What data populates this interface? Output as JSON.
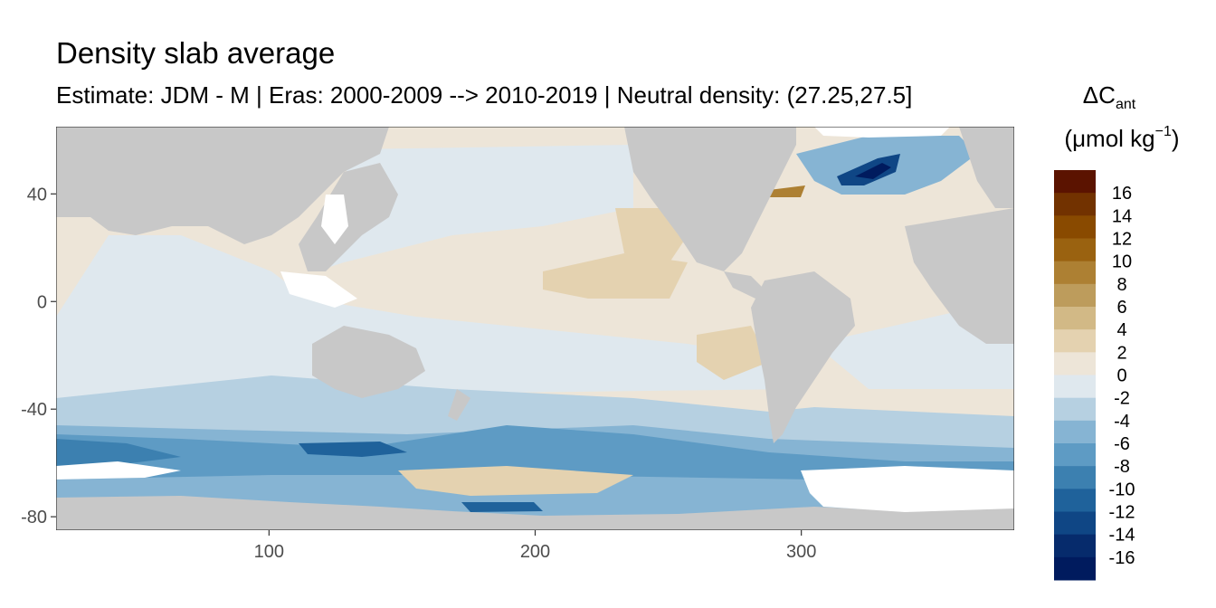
{
  "chart_data": {
    "type": "heatmap",
    "title": "Density slab average",
    "subtitle": "Estimate: JDM - M | Eras: 2000-2009 --> 2010-2019 | Neutral density: (27.25,27.5]",
    "xlabel": "",
    "ylabel": "",
    "xlim": [
      20,
      380
    ],
    "ylim": [
      -85,
      65
    ],
    "x_ticks": [
      100,
      200,
      300
    ],
    "y_ticks": [
      40,
      0,
      -40,
      -80
    ],
    "grid": false,
    "legend": {
      "title_main": "ΔC",
      "title_sub": "ant",
      "unit_prefix": "(μmol kg",
      "unit_exp": "−1",
      "unit_suffix": ")",
      "placement": "right",
      "labels": [
        "16",
        "14",
        "12",
        "10",
        "8",
        "6",
        "4",
        "2",
        "0",
        "-2",
        "-4",
        "-6",
        "-8",
        "-10",
        "-12",
        "-14",
        "-16"
      ],
      "colors": [
        "#5b1300",
        "#723200",
        "#894a00",
        "#9a6210",
        "#ad8033",
        "#bd9c5c",
        "#d2b986",
        "#e4d2b0",
        "#ede5d8",
        "#dfe8ee",
        "#b6d0e1",
        "#86b4d3",
        "#5e9bc4",
        "#3c80b0",
        "#1f629b",
        "#0f4685",
        "#062b6c",
        "#001b5e"
      ]
    },
    "fills": {
      "land": "#c8c8c8",
      "background": "#ffffff"
    }
  }
}
